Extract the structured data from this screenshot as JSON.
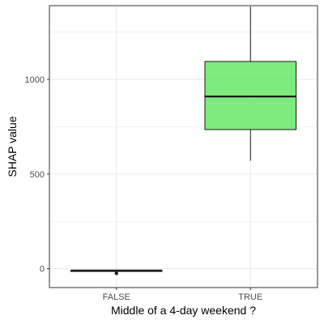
{
  "chart_data": {
    "type": "boxplot",
    "title": "",
    "xlabel": "Middle of a 4-day weekend ?",
    "ylabel": "SHAP value",
    "categories": [
      "FALSE",
      "TRUE"
    ],
    "ylim": [
      -100,
      1390
    ],
    "yticks": [
      0,
      500,
      1000
    ],
    "grid": true,
    "legend": "none",
    "boxes": [
      {
        "category": "FALSE",
        "whisker_low": -15,
        "q1": -15,
        "median": -10,
        "q3": -10,
        "whisker_high": -10,
        "outliers": [
          -25
        ],
        "fill": "#66ff00"
      },
      {
        "category": "TRUE",
        "whisker_low": 570,
        "q1": 735,
        "median": 910,
        "q3": 1095,
        "whisker_high": 1385,
        "outliers": [],
        "fill": "#5ce65c"
      }
    ],
    "colors": {
      "box_fill": "#5ce65c",
      "box_stroke": "#1a1a1a",
      "grid": "#ebebeb",
      "panel_border": "#333333"
    }
  }
}
